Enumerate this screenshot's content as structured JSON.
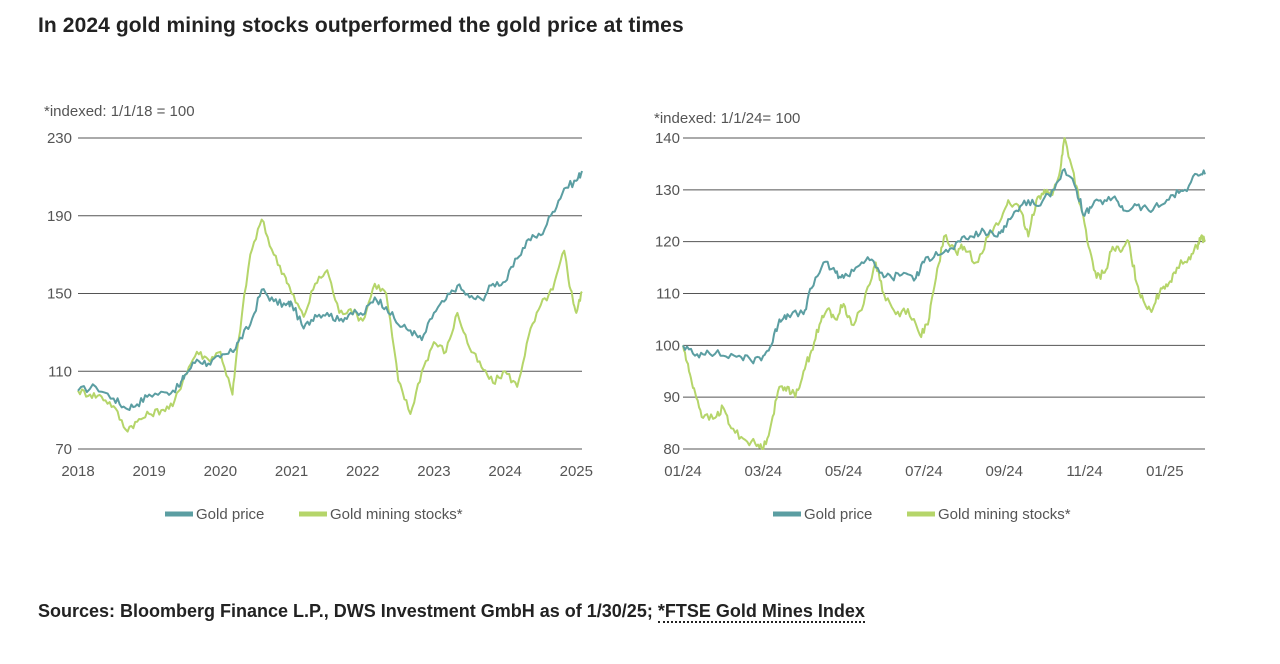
{
  "title": "In 2024 gold mining stocks outperformed the gold price at times",
  "colors": {
    "gold_price": "#5b9ea2",
    "gold_mining": "#b5d56a",
    "grid": "#555555"
  },
  "chart_data": [
    {
      "type": "line",
      "note": "*indexed: 1/1/18 = 100",
      "ylim": [
        70,
        230
      ],
      "yticks": [
        70,
        110,
        150,
        190,
        230
      ],
      "x_range": [
        2018.0,
        2025.08
      ],
      "xticks": [
        {
          "value": 2018,
          "label": "2018"
        },
        {
          "value": 2019,
          "label": "2019"
        },
        {
          "value": 2020,
          "label": "2020"
        },
        {
          "value": 2021,
          "label": "2021"
        },
        {
          "value": 2022,
          "label": "2022"
        },
        {
          "value": 2023,
          "label": "2023"
        },
        {
          "value": 2024,
          "label": "2024"
        },
        {
          "value": 2025,
          "label": "2025"
        }
      ],
      "legend": [
        "Gold price",
        "Gold mining stocks*"
      ],
      "series": [
        {
          "name": "Gold price",
          "points": [
            [
              2018.0,
              100
            ],
            [
              2018.25,
              102
            ],
            [
              2018.5,
              96
            ],
            [
              2018.67,
              91
            ],
            [
              2018.83,
              93
            ],
            [
              2019.0,
              98
            ],
            [
              2019.25,
              99
            ],
            [
              2019.42,
              102
            ],
            [
              2019.5,
              108
            ],
            [
              2019.67,
              116
            ],
            [
              2019.83,
              114
            ],
            [
              2020.0,
              117
            ],
            [
              2020.17,
              120
            ],
            [
              2020.25,
              125
            ],
            [
              2020.42,
              134
            ],
            [
              2020.58,
              152
            ],
            [
              2020.75,
              146
            ],
            [
              2020.92,
              144
            ],
            [
              2021.0,
              145
            ],
            [
              2021.17,
              132
            ],
            [
              2021.33,
              139
            ],
            [
              2021.5,
              140
            ],
            [
              2021.67,
              136
            ],
            [
              2021.83,
              140
            ],
            [
              2022.0,
              139
            ],
            [
              2022.17,
              148
            ],
            [
              2022.33,
              143
            ],
            [
              2022.5,
              134
            ],
            [
              2022.67,
              131
            ],
            [
              2022.83,
              126
            ],
            [
              2023.0,
              140
            ],
            [
              2023.17,
              147
            ],
            [
              2023.33,
              154
            ],
            [
              2023.5,
              148
            ],
            [
              2023.67,
              147
            ],
            [
              2023.83,
              155
            ],
            [
              2024.0,
              156
            ],
            [
              2024.17,
              168
            ],
            [
              2024.33,
              178
            ],
            [
              2024.5,
              180
            ],
            [
              2024.67,
              192
            ],
            [
              2024.83,
              204
            ],
            [
              2025.0,
              208
            ],
            [
              2025.08,
              213
            ]
          ]
        },
        {
          "name": "Gold mining stocks*",
          "points": [
            [
              2018.0,
              100
            ],
            [
              2018.17,
              98
            ],
            [
              2018.33,
              97
            ],
            [
              2018.5,
              92
            ],
            [
              2018.67,
              80
            ],
            [
              2018.83,
              84
            ],
            [
              2019.0,
              88
            ],
            [
              2019.17,
              90
            ],
            [
              2019.33,
              92
            ],
            [
              2019.5,
              108
            ],
            [
              2019.67,
              120
            ],
            [
              2019.83,
              116
            ],
            [
              2020.0,
              120
            ],
            [
              2020.17,
              98
            ],
            [
              2020.25,
              125
            ],
            [
              2020.42,
              170
            ],
            [
              2020.58,
              188
            ],
            [
              2020.75,
              170
            ],
            [
              2020.92,
              158
            ],
            [
              2021.0,
              150
            ],
            [
              2021.17,
              138
            ],
            [
              2021.33,
              155
            ],
            [
              2021.5,
              162
            ],
            [
              2021.67,
              140
            ],
            [
              2021.83,
              142
            ],
            [
              2022.0,
              136
            ],
            [
              2022.17,
              155
            ],
            [
              2022.33,
              150
            ],
            [
              2022.5,
              105
            ],
            [
              2022.67,
              88
            ],
            [
              2022.83,
              110
            ],
            [
              2023.0,
              125
            ],
            [
              2023.17,
              120
            ],
            [
              2023.33,
              140
            ],
            [
              2023.5,
              122
            ],
            [
              2023.67,
              112
            ],
            [
              2023.83,
              104
            ],
            [
              2024.0,
              110
            ],
            [
              2024.17,
              102
            ],
            [
              2024.33,
              128
            ],
            [
              2024.5,
              144
            ],
            [
              2024.67,
              152
            ],
            [
              2024.83,
              172
            ],
            [
              2024.92,
              152
            ],
            [
              2025.0,
              140
            ],
            [
              2025.08,
              151
            ]
          ]
        }
      ]
    },
    {
      "type": "line",
      "note": "*indexed: 1/1/24= 100",
      "ylim": [
        80,
        140
      ],
      "yticks": [
        80,
        90,
        100,
        110,
        120,
        130,
        140
      ],
      "x_range": [
        0,
        13.0
      ],
      "xticks": [
        {
          "value": 0,
          "label": "01/24"
        },
        {
          "value": 2,
          "label": "03/24"
        },
        {
          "value": 4,
          "label": "05/24"
        },
        {
          "value": 6,
          "label": "07/24"
        },
        {
          "value": 8,
          "label": "09/24"
        },
        {
          "value": 10,
          "label": "11/24"
        },
        {
          "value": 12,
          "label": "01/25"
        }
      ],
      "legend": [
        "Gold price",
        "Gold mining stocks*"
      ],
      "series": [
        {
          "name": "Gold price",
          "points": [
            [
              0,
              100
            ],
            [
              0.3,
              98
            ],
            [
              0.6,
              99
            ],
            [
              1.0,
              98
            ],
            [
              1.4,
              98
            ],
            [
              1.7,
              97
            ],
            [
              2.0,
              98
            ],
            [
              2.2,
              100
            ],
            [
              2.4,
              105
            ],
            [
              2.6,
              106
            ],
            [
              3.0,
              106
            ],
            [
              3.2,
              111
            ],
            [
              3.5,
              116
            ],
            [
              3.8,
              114
            ],
            [
              4.0,
              113
            ],
            [
              4.3,
              115
            ],
            [
              4.6,
              117
            ],
            [
              4.9,
              114
            ],
            [
              5.2,
              113
            ],
            [
              5.5,
              114
            ],
            [
              5.8,
              113
            ],
            [
              6.0,
              116
            ],
            [
              6.3,
              118
            ],
            [
              6.6,
              118
            ],
            [
              6.9,
              120
            ],
            [
              7.2,
              121
            ],
            [
              7.5,
              122
            ],
            [
              7.8,
              121
            ],
            [
              8.0,
              123
            ],
            [
              8.3,
              126
            ],
            [
              8.6,
              128
            ],
            [
              8.9,
              127
            ],
            [
              9.2,
              130
            ],
            [
              9.5,
              134
            ],
            [
              9.8,
              130
            ],
            [
              10.0,
              125
            ],
            [
              10.2,
              127
            ],
            [
              10.5,
              128
            ],
            [
              10.8,
              128
            ],
            [
              11.0,
              126
            ],
            [
              11.3,
              127
            ],
            [
              11.6,
              126
            ],
            [
              11.9,
              127
            ],
            [
              12.2,
              129
            ],
            [
              12.5,
              130
            ],
            [
              12.8,
              133
            ],
            [
              13.0,
              133
            ]
          ]
        },
        {
          "name": "Gold mining stocks*",
          "points": [
            [
              0,
              100
            ],
            [
              0.15,
              95
            ],
            [
              0.3,
              91
            ],
            [
              0.5,
              86
            ],
            [
              0.8,
              86
            ],
            [
              1.0,
              88
            ],
            [
              1.2,
              84
            ],
            [
              1.5,
              82
            ],
            [
              1.8,
              81
            ],
            [
              2.0,
              80
            ],
            [
              2.2,
              85
            ],
            [
              2.4,
              92
            ],
            [
              2.6,
              92
            ],
            [
              2.8,
              90
            ],
            [
              3.0,
              95
            ],
            [
              3.2,
              99
            ],
            [
              3.4,
              104
            ],
            [
              3.6,
              107
            ],
            [
              3.8,
              105
            ],
            [
              4.0,
              108
            ],
            [
              4.2,
              104
            ],
            [
              4.5,
              108
            ],
            [
              4.8,
              116
            ],
            [
              5.0,
              110
            ],
            [
              5.3,
              106
            ],
            [
              5.6,
              107
            ],
            [
              5.9,
              102
            ],
            [
              6.1,
              104
            ],
            [
              6.3,
              113
            ],
            [
              6.5,
              121
            ],
            [
              6.8,
              118
            ],
            [
              7.0,
              119
            ],
            [
              7.3,
              116
            ],
            [
              7.6,
              121
            ],
            [
              7.9,
              124
            ],
            [
              8.1,
              128
            ],
            [
              8.4,
              126
            ],
            [
              8.6,
              121
            ],
            [
              8.8,
              128
            ],
            [
              9.0,
              130
            ],
            [
              9.2,
              129
            ],
            [
              9.4,
              134
            ],
            [
              9.5,
              140
            ],
            [
              9.7,
              134
            ],
            [
              9.9,
              127
            ],
            [
              10.1,
              119
            ],
            [
              10.3,
              113
            ],
            [
              10.5,
              114
            ],
            [
              10.7,
              119
            ],
            [
              10.9,
              118
            ],
            [
              11.1,
              120
            ],
            [
              11.3,
              112
            ],
            [
              11.5,
              108
            ],
            [
              11.7,
              107
            ],
            [
              11.9,
              111
            ],
            [
              12.1,
              112
            ],
            [
              12.3,
              115
            ],
            [
              12.6,
              117
            ],
            [
              12.8,
              119
            ],
            [
              12.9,
              121
            ],
            [
              13.0,
              120
            ]
          ]
        }
      ]
    }
  ],
  "sources": {
    "text": "Sources: Bloomberg Finance L.P., DWS Investment GmbH as of 1/30/25; ",
    "link": "*FTSE Gold Mines Index"
  }
}
